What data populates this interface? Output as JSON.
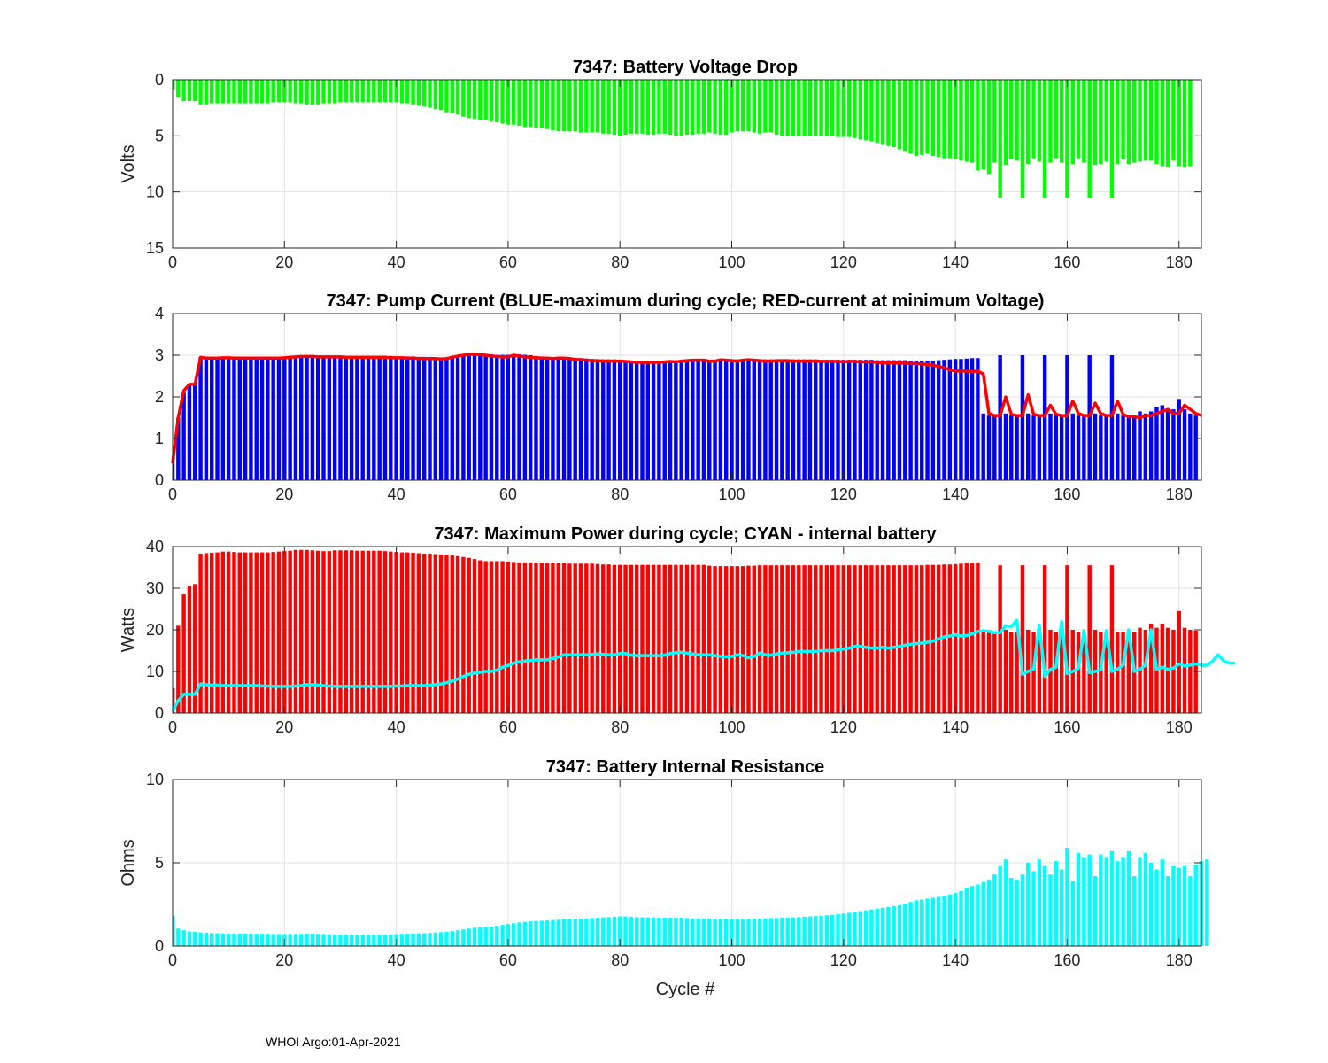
{
  "footer": "WHOI Argo:01-Apr-2021",
  "colors": {
    "green": "#00ff00",
    "blue": "#0000ff",
    "red": "#ff0000",
    "cyan": "#00ffff",
    "grid": "#e3e3e3",
    "axis": "#262626"
  },
  "chart_data": [
    {
      "type": "bar",
      "title": "7347: Battery Voltage Drop",
      "ylabel": "Volts",
      "xlabel": "",
      "xlim": [
        0,
        184
      ],
      "ylim": [
        0,
        15
      ],
      "y_reversed": true,
      "xticks": [
        0,
        20,
        40,
        60,
        80,
        100,
        120,
        140,
        160,
        180
      ],
      "yticks": [
        0,
        5,
        10,
        15
      ],
      "grid": true,
      "bar_color": "#00ff00",
      "x_start": 0,
      "values": [
        0.9,
        1.6,
        1.9,
        1.9,
        1.9,
        2.2,
        2.2,
        2.1,
        2.1,
        2.1,
        2.1,
        2.1,
        2.1,
        2.1,
        2.1,
        2.1,
        2.1,
        2.1,
        2.0,
        2.0,
        2.0,
        2.0,
        2.1,
        2.1,
        2.2,
        2.2,
        2.2,
        2.1,
        2.1,
        2.1,
        2.0,
        2.0,
        2.0,
        2.0,
        2.0,
        2.0,
        2.0,
        2.0,
        2.0,
        2.0,
        2.0,
        2.1,
        2.1,
        2.2,
        2.3,
        2.4,
        2.5,
        2.6,
        2.7,
        2.9,
        3.0,
        3.1,
        3.3,
        3.4,
        3.5,
        3.6,
        3.6,
        3.7,
        3.8,
        3.9,
        4.0,
        4.0,
        4.1,
        4.2,
        4.2,
        4.3,
        4.3,
        4.4,
        4.5,
        4.6,
        4.6,
        4.6,
        4.6,
        4.7,
        4.7,
        4.7,
        4.7,
        4.8,
        4.8,
        4.9,
        5.0,
        4.9,
        4.8,
        4.8,
        4.8,
        4.9,
        4.9,
        4.8,
        4.8,
        4.9,
        5.0,
        5.0,
        4.9,
        4.9,
        4.8,
        4.8,
        4.7,
        4.8,
        4.9,
        4.9,
        4.7,
        4.6,
        4.6,
        4.6,
        4.7,
        4.8,
        4.7,
        4.7,
        4.9,
        5.0,
        5.0,
        5.0,
        5.0,
        5.0,
        5.0,
        5.0,
        5.0,
        5.0,
        5.0,
        5.1,
        5.1,
        5.1,
        5.2,
        5.3,
        5.4,
        5.5,
        5.6,
        5.8,
        5.9,
        6.0,
        6.2,
        6.4,
        6.6,
        6.8,
        6.7,
        6.6,
        6.8,
        6.9,
        7.0,
        7.0,
        7.1,
        7.2,
        7.3,
        7.4,
        8.1,
        8.0,
        8.4,
        7.4,
        10.5,
        7.6,
        7.1,
        7.2,
        10.5,
        7.5,
        7.0,
        7.3,
        10.5,
        7.4,
        7.0,
        7.4,
        10.5,
        7.5,
        7.0,
        7.4,
        10.5,
        7.6,
        7.5,
        7.3,
        10.5,
        7.5,
        7.1,
        7.5,
        7.4,
        7.3,
        7.2,
        7.2,
        7.5,
        7.7,
        7.8,
        7.2,
        7.7,
        7.8,
        7.7
      ]
    },
    {
      "type": "bar",
      "title": "7347: Pump Current (BLUE-maximum during cycle; RED-current at minimum Voltage)",
      "ylabel": "",
      "xlabel": "",
      "xlim": [
        0,
        184
      ],
      "ylim": [
        0,
        4
      ],
      "y_reversed": false,
      "xticks": [
        0,
        20,
        40,
        60,
        80,
        100,
        120,
        140,
        160,
        180
      ],
      "yticks": [
        0,
        1,
        2,
        3,
        4
      ],
      "grid": true,
      "bar_color": "#0000ff",
      "line_color": "#ff0000",
      "x_start": 0,
      "values": [
        0.4,
        1.5,
        2.1,
        2.3,
        2.3,
        2.95,
        2.95,
        2.95,
        2.95,
        2.95,
        2.95,
        2.95,
        2.95,
        2.95,
        2.95,
        2.95,
        2.95,
        2.95,
        2.95,
        2.95,
        2.95,
        2.95,
        2.97,
        2.98,
        2.99,
        2.99,
        2.99,
        2.98,
        2.98,
        2.98,
        2.98,
        2.98,
        2.98,
        2.98,
        2.98,
        2.98,
        2.98,
        2.98,
        2.98,
        2.98,
        2.97,
        2.97,
        2.97,
        2.97,
        2.96,
        2.96,
        2.96,
        2.95,
        2.94,
        2.94,
        2.96,
        2.98,
        3.0,
        3.02,
        3.03,
        3.03,
        3.03,
        3.02,
        3.01,
        3.01,
        3.01,
        3.02,
        3.02,
        3.01,
        3.0,
        2.98,
        2.97,
        2.96,
        2.95,
        2.95,
        2.95,
        2.94,
        2.93,
        2.93,
        2.92,
        2.91,
        2.9,
        2.9,
        2.9,
        2.9,
        2.89,
        2.88,
        2.87,
        2.87,
        2.87,
        2.87,
        2.87,
        2.87,
        2.87,
        2.88,
        2.88,
        2.89,
        2.89,
        2.9,
        2.9,
        2.9,
        2.89,
        2.89,
        2.9,
        2.9,
        2.9,
        2.9,
        2.9,
        2.9,
        2.9,
        2.9,
        2.9,
        2.9,
        2.9,
        2.9,
        2.9,
        2.9,
        2.9,
        2.9,
        2.9,
        2.9,
        2.89,
        2.89,
        2.89,
        2.89,
        2.89,
        2.89,
        2.89,
        2.89,
        2.89,
        2.89,
        2.88,
        2.88,
        2.88,
        2.88,
        2.88,
        2.88,
        2.87,
        2.87,
        2.87,
        2.86,
        2.87,
        2.88,
        2.89,
        2.9,
        2.91,
        2.91,
        2.92,
        2.93,
        2.93,
        1.6,
        1.55,
        1.55,
        3.0,
        1.6,
        1.55,
        1.55,
        3.0,
        1.6,
        1.55,
        1.55,
        3.0,
        1.6,
        1.55,
        1.55,
        3.0,
        1.6,
        1.55,
        1.55,
        3.0,
        1.6,
        1.55,
        1.55,
        3.0,
        1.6,
        1.55,
        1.55,
        1.55,
        1.65,
        1.6,
        1.65,
        1.75,
        1.8,
        1.7,
        1.7,
        1.95,
        1.7,
        1.6,
        1.55
      ],
      "line_values": [
        0.4,
        1.5,
        2.15,
        2.3,
        2.3,
        2.95,
        2.93,
        2.93,
        2.93,
        2.94,
        2.94,
        2.93,
        2.93,
        2.93,
        2.93,
        2.93,
        2.93,
        2.93,
        2.93,
        2.93,
        2.94,
        2.95,
        2.96,
        2.97,
        2.97,
        2.97,
        2.96,
        2.96,
        2.96,
        2.96,
        2.96,
        2.95,
        2.95,
        2.95,
        2.95,
        2.95,
        2.95,
        2.95,
        2.95,
        2.94,
        2.94,
        2.94,
        2.93,
        2.93,
        2.92,
        2.92,
        2.92,
        2.92,
        2.91,
        2.92,
        2.95,
        2.98,
        3.0,
        3.02,
        3.02,
        3.01,
        3.0,
        2.98,
        2.97,
        2.96,
        2.96,
        3.0,
        2.98,
        2.96,
        2.95,
        2.94,
        2.93,
        2.93,
        2.92,
        2.93,
        2.93,
        2.92,
        2.9,
        2.89,
        2.88,
        2.87,
        2.87,
        2.86,
        2.86,
        2.86,
        2.86,
        2.85,
        2.84,
        2.83,
        2.83,
        2.83,
        2.83,
        2.83,
        2.84,
        2.85,
        2.84,
        2.86,
        2.87,
        2.88,
        2.88,
        2.88,
        2.86,
        2.86,
        2.89,
        2.88,
        2.87,
        2.86,
        2.88,
        2.89,
        2.88,
        2.87,
        2.86,
        2.86,
        2.87,
        2.87,
        2.87,
        2.86,
        2.86,
        2.86,
        2.86,
        2.86,
        2.85,
        2.85,
        2.85,
        2.85,
        2.84,
        2.85,
        2.85,
        2.84,
        2.84,
        2.84,
        2.83,
        2.82,
        2.82,
        2.82,
        2.81,
        2.81,
        2.8,
        2.8,
        2.79,
        2.78,
        2.76,
        2.73,
        2.7,
        2.65,
        2.62,
        2.62,
        2.62,
        2.61,
        2.62,
        2.55,
        1.6,
        1.55,
        1.55,
        2.0,
        1.58,
        1.55,
        1.55,
        2.05,
        1.58,
        1.55,
        1.55,
        1.8,
        1.58,
        1.55,
        1.55,
        1.9,
        1.6,
        1.55,
        1.55,
        1.85,
        1.6,
        1.55,
        1.55,
        1.9,
        1.58,
        1.52,
        1.52,
        1.5,
        1.55,
        1.55,
        1.6,
        1.65,
        1.7,
        1.6,
        1.6,
        1.8,
        1.7,
        1.6,
        1.55
      ]
    },
    {
      "type": "bar",
      "title": "7347: Maximum Power during cycle; CYAN - internal battery",
      "ylabel": "Watts",
      "xlabel": "",
      "xlim": [
        0,
        184
      ],
      "ylim": [
        0,
        40
      ],
      "y_reversed": false,
      "xticks": [
        0,
        20,
        40,
        60,
        80,
        100,
        120,
        140,
        160,
        180
      ],
      "yticks": [
        0,
        10,
        20,
        30,
        40
      ],
      "grid": true,
      "bar_color": "#ff0000",
      "line_color": "#00ffff",
      "x_start": 0,
      "values": [
        6,
        21,
        28.5,
        30.5,
        31,
        38.3,
        38.4,
        38.5,
        38.6,
        38.8,
        38.8,
        38.7,
        38.6,
        38.6,
        38.6,
        38.6,
        38.6,
        38.6,
        38.7,
        38.8,
        38.9,
        39.0,
        39.2,
        39.2,
        39.2,
        39.1,
        39.0,
        38.9,
        38.9,
        39.1,
        39.1,
        39.1,
        39.1,
        39.0,
        39.0,
        39.0,
        39.0,
        39.0,
        38.9,
        38.8,
        38.7,
        38.6,
        38.6,
        38.5,
        38.4,
        38.3,
        38.3,
        38.2,
        38.1,
        38.0,
        37.9,
        37.7,
        37.5,
        37.3,
        37.0,
        36.7,
        36.5,
        36.5,
        36.5,
        36.5,
        36.4,
        36.3,
        36.2,
        36.2,
        36.2,
        36.1,
        36.1,
        36.0,
        36.0,
        36.0,
        36.0,
        35.9,
        35.9,
        35.9,
        35.9,
        35.9,
        35.8,
        35.7,
        35.7,
        35.6,
        35.6,
        35.6,
        35.6,
        35.6,
        35.6,
        35.6,
        35.6,
        35.6,
        35.6,
        35.6,
        35.6,
        35.6,
        35.6,
        35.6,
        35.6,
        35.6,
        35.4,
        35.3,
        35.3,
        35.3,
        35.3,
        35.3,
        35.3,
        35.4,
        35.4,
        35.5,
        35.5,
        35.5,
        35.5,
        35.5,
        35.5,
        35.5,
        35.5,
        35.5,
        35.5,
        35.5,
        35.5,
        35.5,
        35.5,
        35.5,
        35.5,
        35.5,
        35.5,
        35.5,
        35.5,
        35.5,
        35.5,
        35.5,
        35.5,
        35.5,
        35.5,
        35.5,
        35.5,
        35.5,
        35.5,
        35.6,
        35.6,
        35.6,
        35.7,
        35.7,
        35.8,
        35.9,
        36.0,
        36.1,
        36.2,
        19.5,
        19.5,
        19.5,
        35.5,
        20,
        19.5,
        19.5,
        35.5,
        20,
        19.5,
        19.5,
        35.5,
        20,
        19.5,
        19.5,
        35.5,
        20,
        19.5,
        19.5,
        35.5,
        20,
        19.5,
        19.5,
        35.5,
        19.5,
        19.5,
        19.5,
        19.5,
        20.5,
        20.0,
        21.5,
        20.5,
        21.5,
        20.5,
        20.0,
        24.5,
        20.5,
        20.0,
        19.8
      ],
      "line_values": [
        0.5,
        3,
        4.5,
        4.5,
        4.5,
        7.0,
        6.8,
        6.7,
        6.7,
        6.6,
        6.6,
        6.6,
        6.6,
        6.6,
        6.6,
        6.6,
        6.5,
        6.5,
        6.4,
        6.4,
        6.4,
        6.4,
        6.5,
        6.6,
        6.8,
        6.8,
        6.7,
        6.6,
        6.5,
        6.4,
        6.4,
        6.4,
        6.4,
        6.4,
        6.4,
        6.4,
        6.4,
        6.4,
        6.4,
        6.4,
        6.5,
        6.5,
        6.6,
        6.6,
        6.6,
        6.6,
        6.7,
        6.8,
        7.0,
        7.3,
        7.7,
        8.2,
        8.8,
        9.3,
        9.6,
        9.8,
        10.0,
        10.0,
        10.3,
        11.0,
        11.4,
        12.0,
        12.3,
        12.5,
        12.6,
        12.8,
        12.8,
        12.8,
        13.1,
        13.5,
        14.0,
        14.0,
        14.0,
        14.0,
        14.0,
        14.1,
        14.2,
        14.1,
        14.0,
        14.0,
        14.3,
        14.3,
        13.9,
        13.8,
        13.8,
        13.8,
        13.8,
        13.8,
        13.9,
        14.3,
        14.5,
        14.6,
        14.4,
        14.2,
        14.0,
        14.0,
        14.0,
        13.8,
        13.6,
        13.5,
        13.6,
        14.0,
        13.8,
        13.3,
        13.6,
        14.4,
        14.0,
        13.9,
        14.2,
        14.4,
        14.5,
        14.6,
        14.8,
        14.8,
        14.8,
        14.8,
        15.0,
        15.0,
        15.0,
        15.2,
        15.4,
        15.6,
        16.0,
        16.0,
        15.8,
        15.6,
        15.6,
        15.8,
        15.6,
        15.8,
        16.0,
        16.3,
        16.5,
        16.7,
        16.8,
        17.0,
        17.3,
        17.8,
        18.3,
        18.5,
        18.8,
        18.5,
        18.6,
        19.0,
        19.6,
        19.8,
        19.6,
        19.3,
        19.3,
        21.0,
        20.8,
        22.3,
        9.3,
        10.0,
        10.5,
        21.2,
        8.8,
        10.5,
        11.0,
        22.0,
        9.5,
        10.0,
        10.7,
        19.8,
        9.7,
        10.0,
        10.4,
        19.8,
        10.0,
        10.5,
        11.5,
        20.0,
        10.0,
        10.5,
        11.5,
        20.0,
        10.5,
        11.0,
        10.5,
        10.8,
        11.8,
        11.3,
        11.5,
        11.8,
        11.5,
        11.5,
        12.5,
        14.0,
        12.5,
        12.0,
        12.0
      ]
    },
    {
      "type": "bar",
      "title": "7347: Battery Internal Resistance",
      "ylabel": "Ohms",
      "xlabel": "Cycle #",
      "xlim": [
        0,
        184
      ],
      "ylim": [
        0,
        10
      ],
      "y_reversed": false,
      "xticks": [
        0,
        20,
        40,
        60,
        80,
        100,
        120,
        140,
        160,
        180
      ],
      "yticks": [
        0,
        5,
        10
      ],
      "grid": true,
      "bar_color": "#00ffff",
      "x_start": 0,
      "values": [
        1.85,
        1.05,
        0.95,
        0.88,
        0.85,
        0.82,
        0.8,
        0.78,
        0.77,
        0.76,
        0.75,
        0.75,
        0.75,
        0.75,
        0.75,
        0.74,
        0.74,
        0.73,
        0.72,
        0.72,
        0.72,
        0.72,
        0.72,
        0.73,
        0.74,
        0.74,
        0.73,
        0.72,
        0.71,
        0.7,
        0.7,
        0.7,
        0.7,
        0.7,
        0.7,
        0.7,
        0.7,
        0.7,
        0.7,
        0.7,
        0.72,
        0.73,
        0.74,
        0.75,
        0.76,
        0.77,
        0.79,
        0.81,
        0.83,
        0.86,
        0.9,
        0.95,
        1.0,
        1.05,
        1.1,
        1.12,
        1.15,
        1.18,
        1.22,
        1.27,
        1.32,
        1.37,
        1.42,
        1.45,
        1.48,
        1.5,
        1.52,
        1.54,
        1.56,
        1.58,
        1.6,
        1.6,
        1.62,
        1.64,
        1.66,
        1.68,
        1.7,
        1.72,
        1.74,
        1.76,
        1.78,
        1.78,
        1.76,
        1.74,
        1.72,
        1.72,
        1.72,
        1.7,
        1.7,
        1.7,
        1.7,
        1.7,
        1.68,
        1.66,
        1.66,
        1.66,
        1.66,
        1.64,
        1.64,
        1.64,
        1.62,
        1.62,
        1.64,
        1.64,
        1.66,
        1.66,
        1.66,
        1.68,
        1.68,
        1.7,
        1.7,
        1.72,
        1.74,
        1.76,
        1.78,
        1.8,
        1.82,
        1.85,
        1.88,
        1.92,
        1.96,
        2.0,
        2.05,
        2.1,
        2.15,
        2.2,
        2.25,
        2.3,
        2.35,
        2.4,
        2.45,
        2.55,
        2.65,
        2.75,
        2.8,
        2.85,
        2.9,
        2.95,
        3.0,
        3.1,
        3.2,
        3.3,
        3.5,
        3.6,
        3.7,
        3.85,
        4.0,
        4.3,
        4.8,
        5.2,
        4.1,
        4.0,
        4.3,
        5.0,
        4.5,
        5.2,
        4.8,
        4.3,
        5.1,
        4.6,
        5.9,
        3.9,
        5.6,
        5.3,
        5.5,
        4.2,
        5.5,
        5.3,
        5.7,
        5.1,
        5.3,
        5.7,
        4.2,
        5.3,
        5.6,
        5.0,
        4.6,
        5.2,
        4.2,
        4.8,
        4.7,
        4.8,
        4.2,
        4.9,
        5.1,
        5.2
      ]
    }
  ]
}
